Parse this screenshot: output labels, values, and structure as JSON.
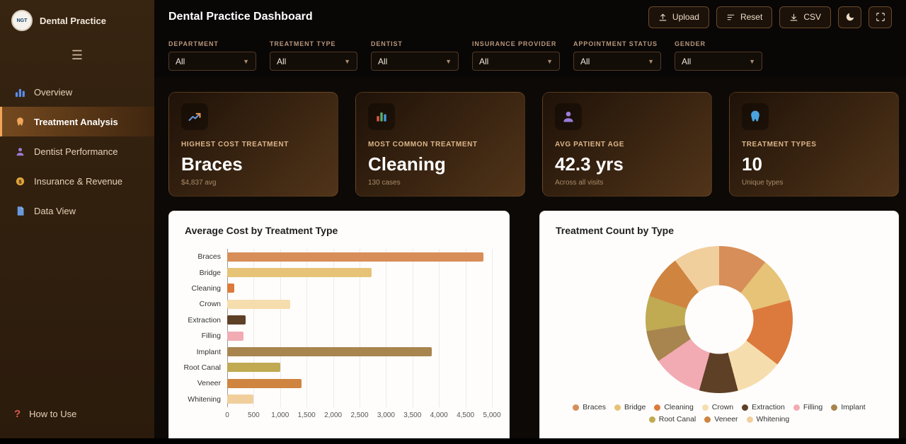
{
  "brand": {
    "name": "Dental Practice",
    "logo_text": "NGT"
  },
  "header": {
    "title": "Dental Practice Dashboard",
    "upload_label": "Upload",
    "reset_label": "Reset",
    "csv_label": "CSV"
  },
  "filters": [
    {
      "label": "DEPARTMENT",
      "value": "All"
    },
    {
      "label": "TREATMENT TYPE",
      "value": "All"
    },
    {
      "label": "DENTIST",
      "value": "All"
    },
    {
      "label": "INSURANCE PROVIDER",
      "value": "All"
    },
    {
      "label": "APPOINTMENT STATUS",
      "value": "All"
    },
    {
      "label": "GENDER",
      "value": "All"
    }
  ],
  "sidebar": {
    "items": [
      {
        "label": "Overview",
        "active": false
      },
      {
        "label": "Treatment Analysis",
        "active": true
      },
      {
        "label": "Dentist Performance",
        "active": false
      },
      {
        "label": "Insurance & Revenue",
        "active": false
      },
      {
        "label": "Data View",
        "active": false
      }
    ],
    "footer": {
      "label": "How to Use"
    }
  },
  "kpis": [
    {
      "label": "HIGHEST COST TREATMENT",
      "value": "Braces",
      "sub": "$4,837 avg",
      "icon": "line-chart-icon"
    },
    {
      "label": "MOST COMMON TREATMENT",
      "value": "Cleaning",
      "sub": "130 cases",
      "icon": "bar-chart-icon"
    },
    {
      "label": "AVG PATIENT AGE",
      "value": "42.3 yrs",
      "sub": "Across all visits",
      "icon": "patient-icon"
    },
    {
      "label": "TREATMENT TYPES",
      "value": "10",
      "sub": "Unique types",
      "icon": "tooth-icon"
    }
  ],
  "chart_data": [
    {
      "type": "bar",
      "orientation": "horizontal",
      "title": "Average Cost by Treatment Type",
      "categories": [
        "Braces",
        "Bridge",
        "Cleaning",
        "Crown",
        "Extraction",
        "Filling",
        "Implant",
        "Root Canal",
        "Veneer",
        "Whitening"
      ],
      "values": [
        4837,
        2730,
        140,
        1190,
        350,
        310,
        3870,
        1000,
        1410,
        500
      ],
      "colors": [
        "#d78e58",
        "#e6c377",
        "#db7a3c",
        "#f6ddad",
        "#5e4027",
        "#f2abb3",
        "#a8854f",
        "#c0aa52",
        "#cf8440",
        "#f1cf9d"
      ],
      "xlim": [
        0,
        5000
      ],
      "xticks": [
        "0",
        "500",
        "1,000",
        "1,500",
        "2,000",
        "2,500",
        "3,000",
        "3,500",
        "4,000",
        "4,500",
        "5,000"
      ],
      "xlabel": "",
      "ylabel": "",
      "grid": true,
      "legend_position": "none"
    },
    {
      "type": "pie",
      "subtype": "donut",
      "title": "Treatment Count by Type",
      "categories": [
        "Braces",
        "Bridge",
        "Cleaning",
        "Crown",
        "Extraction",
        "Filling",
        "Implant",
        "Root Canal",
        "Veneer",
        "Whitening"
      ],
      "values": [
        95,
        88,
        130,
        92,
        75,
        98,
        62,
        68,
        85,
        90
      ],
      "colors": [
        "#d78e58",
        "#e6c377",
        "#db7a3c",
        "#f6ddad",
        "#5e4027",
        "#f2abb3",
        "#a8854f",
        "#c0aa52",
        "#cf8440",
        "#f1cf9d"
      ],
      "legend_position": "bottom"
    }
  ]
}
